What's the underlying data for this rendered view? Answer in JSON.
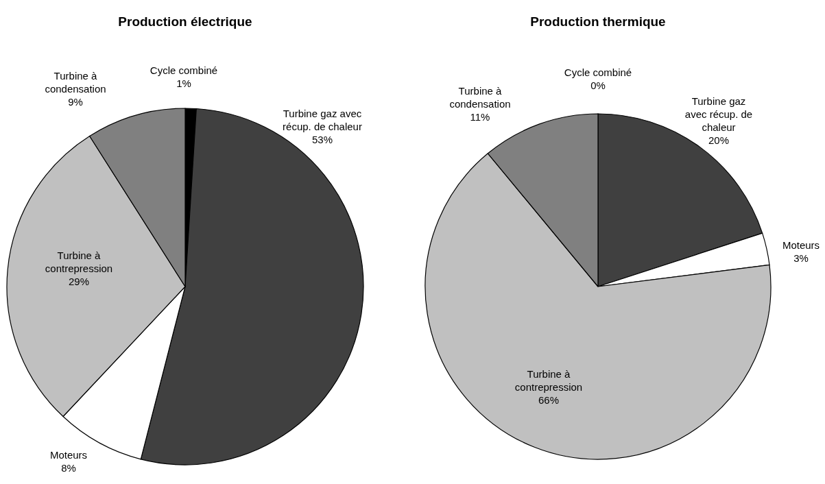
{
  "chart_data": [
    {
      "type": "pie",
      "title": "Production électrique",
      "categories": [
        "Cycle combiné",
        "Turbine gaz avec récup. de chaleur",
        "Moteurs",
        "Turbine à contrepression",
        "Turbine à condensation"
      ],
      "values": [
        1,
        53,
        8,
        29,
        9
      ],
      "value_labels": [
        "1%",
        "53%",
        "8%",
        "29%",
        "9%"
      ],
      "colors": [
        "#000000",
        "#404040",
        "#ffffff",
        "#c0c0c0",
        "#808080"
      ]
    },
    {
      "type": "pie",
      "title": "Production thermique",
      "categories": [
        "Cycle combiné",
        "Turbine gaz avec récup. de chaleur",
        "Moteurs",
        "Turbine à contrepression",
        "Turbine à condensation"
      ],
      "values": [
        0,
        20,
        3,
        66,
        11
      ],
      "value_labels": [
        "0%",
        "20%",
        "3%",
        "66%",
        "11%"
      ],
      "colors": [
        "#000000",
        "#404040",
        "#ffffff",
        "#c0c0c0",
        "#808080"
      ]
    }
  ]
}
